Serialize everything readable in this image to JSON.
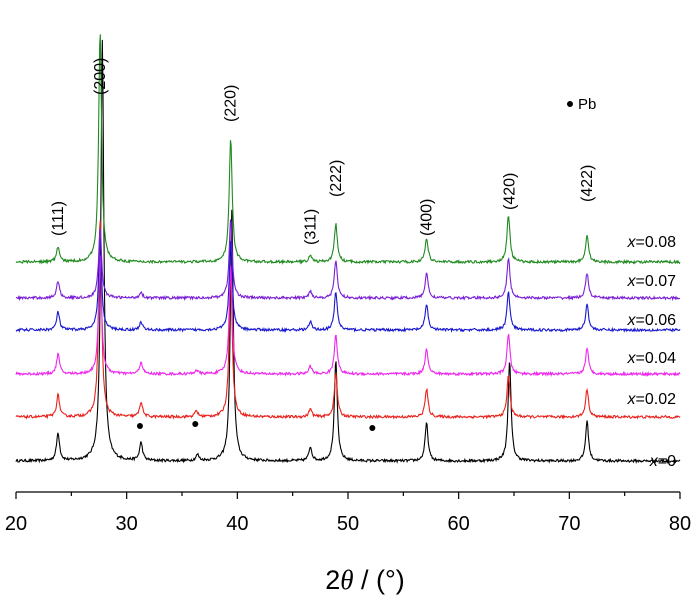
{
  "chart_data": {
    "type": "line",
    "x_axis": {
      "min": 20,
      "max": 80,
      "major_ticks": [
        20,
        30,
        40,
        50,
        60,
        70,
        80
      ],
      "label_prefix": "2",
      "label_theta": "θ",
      "label_suffix": " / (°)"
    },
    "y_axis": {
      "visible": false
    },
    "grid": false,
    "peak_labels": [
      {
        "text": "(111)",
        "x": 23.8
      },
      {
        "text": "(200)",
        "x": 27.6
      },
      {
        "text": "(220)",
        "x": 39.4
      },
      {
        "text": "(311)",
        "x": 46.6
      },
      {
        "text": "(222)",
        "x": 48.9
      },
      {
        "text": "(400)",
        "x": 57.1
      },
      {
        "text": "(420)",
        "x": 64.6
      },
      {
        "text": "(422)",
        "x": 71.6
      }
    ],
    "impurity_markers": {
      "legend_label": "Pb",
      "positions": [
        31.2,
        36.2,
        52.2
      ]
    },
    "series": [
      {
        "name": "x=0",
        "var": "x",
        "value": "=0",
        "color": "#000000",
        "peaks": [
          [
            23.8,
            28
          ],
          [
            27.8,
            420
          ],
          [
            31.3,
            18
          ],
          [
            36.4,
            6
          ],
          [
            39.5,
            250
          ],
          [
            46.6,
            14
          ],
          [
            48.9,
            100
          ],
          [
            57.1,
            38
          ],
          [
            64.6,
            100
          ],
          [
            71.6,
            40
          ]
        ]
      },
      {
        "name": "x=0.02",
        "var": "x",
        "value": "=0.02",
        "color": "#e8211b",
        "peaks": [
          [
            23.8,
            22
          ],
          [
            27.6,
            200
          ],
          [
            31.3,
            15
          ],
          [
            36.3,
            6
          ],
          [
            39.4,
            150
          ],
          [
            46.6,
            8
          ],
          [
            48.9,
            44
          ],
          [
            57.1,
            28
          ],
          [
            64.5,
            42
          ],
          [
            71.6,
            28
          ]
        ]
      },
      {
        "name": "x=0.04",
        "var": "x",
        "value": "=0.04",
        "color": "#ee26ee",
        "peaks": [
          [
            23.8,
            20
          ],
          [
            27.6,
            120
          ],
          [
            31.3,
            12
          ],
          [
            36.3,
            4
          ],
          [
            39.4,
            110
          ],
          [
            46.6,
            8
          ],
          [
            48.9,
            40
          ],
          [
            57.1,
            26
          ],
          [
            64.5,
            40
          ],
          [
            71.6,
            26
          ]
        ]
      },
      {
        "name": "x=0.06",
        "var": "x",
        "value": "=0.06",
        "color": "#1717cf",
        "peaks": [
          [
            23.8,
            18
          ],
          [
            27.6,
            95
          ],
          [
            31.3,
            8
          ],
          [
            39.4,
            90
          ],
          [
            46.6,
            8
          ],
          [
            48.9,
            38
          ],
          [
            57.1,
            26
          ],
          [
            64.5,
            38
          ],
          [
            71.6,
            26
          ]
        ]
      },
      {
        "name": "x=0.07",
        "var": "x",
        "value": "=0.07",
        "color": "#7a1fd6",
        "peaks": [
          [
            23.8,
            17
          ],
          [
            27.6,
            70
          ],
          [
            31.3,
            6
          ],
          [
            39.4,
            80
          ],
          [
            46.6,
            7
          ],
          [
            48.9,
            38
          ],
          [
            57.1,
            25
          ],
          [
            64.5,
            40
          ],
          [
            71.6,
            25
          ]
        ]
      },
      {
        "name": "x=0.08",
        "var": "x",
        "value": "=0.08",
        "color": "#1f8a1f",
        "peaks": [
          [
            23.8,
            15
          ],
          [
            27.6,
            230
          ],
          [
            39.4,
            125
          ],
          [
            46.6,
            7
          ],
          [
            48.9,
            38
          ],
          [
            57.1,
            24
          ],
          [
            64.5,
            47
          ],
          [
            71.6,
            27
          ]
        ]
      }
    ]
  }
}
